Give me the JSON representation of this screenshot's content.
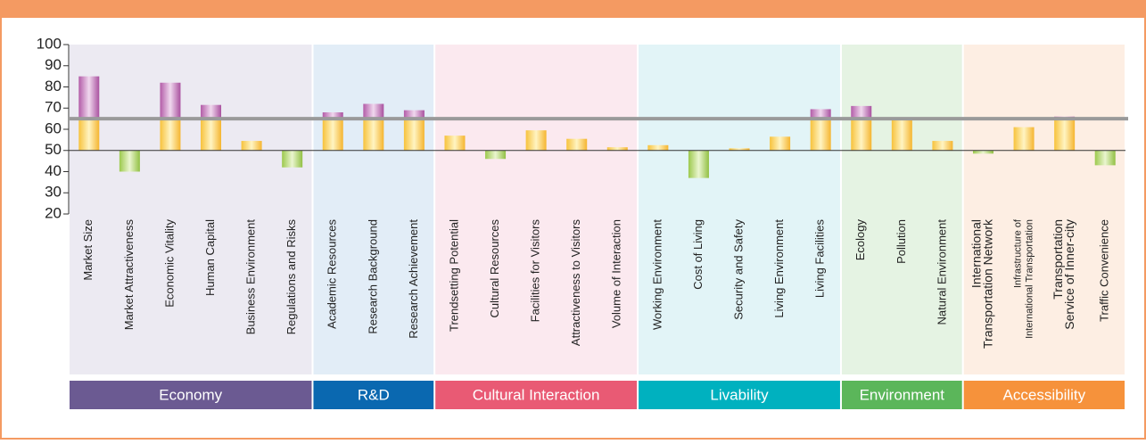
{
  "chart_data": {
    "type": "bar",
    "ylim": [
      20,
      100
    ],
    "yticks": [
      20,
      30,
      40,
      50,
      60,
      70,
      80,
      90,
      100
    ],
    "baseline": 50,
    "reference_line": 65,
    "groups": [
      {
        "name": "Economy",
        "color": "#6b5a92",
        "background": "#eceaf2",
        "categories": [
          [
            "Market Size"
          ],
          [
            "Market Attractiveness"
          ],
          [
            "Economic Vitality"
          ],
          [
            "Human Capital"
          ],
          [
            "Business Environment"
          ],
          [
            "Regulations and Risks"
          ]
        ],
        "values": [
          85,
          40,
          82,
          71.5,
          54.5,
          42
        ]
      },
      {
        "name": "R&D",
        "color": "#0a68b0",
        "background": "#e2edf7",
        "categories": [
          [
            "Academic Resources"
          ],
          [
            "Research Background"
          ],
          [
            "Research Achievement"
          ]
        ],
        "values": [
          68,
          72,
          69
        ]
      },
      {
        "name": "Cultural Interaction",
        "color": "#e95a74",
        "background": "#fbe9ef",
        "categories": [
          [
            "Trendsetting Potential"
          ],
          [
            "Cultural Resources"
          ],
          [
            "Facilities for Visitors"
          ],
          [
            "Attractiveness to Visitors"
          ],
          [
            "Volume of Interaction"
          ]
        ],
        "values": [
          57,
          46,
          59.5,
          55.5,
          51.5
        ]
      },
      {
        "name": "Livability",
        "color": "#00b1bf",
        "background": "#e2f4f7",
        "categories": [
          [
            "Working Environment"
          ],
          [
            "Cost of Living"
          ],
          [
            "Security and Safety"
          ],
          [
            "Living Environment"
          ],
          [
            "Living Facilities"
          ]
        ],
        "values": [
          52.5,
          37,
          51,
          56.5,
          69.5
        ]
      },
      {
        "name": "Environment",
        "color": "#5bb65a",
        "background": "#e5f3e3",
        "categories": [
          [
            "Ecology"
          ],
          [
            "Pollution"
          ],
          [
            "Natural Environment"
          ]
        ],
        "values": [
          71,
          64.5,
          54.5
        ]
      },
      {
        "name": "Accessibility",
        "color": "#f6923b",
        "background": "#fdeee3",
        "categories": [
          [
            "International",
            "Transportation Network"
          ],
          [
            "Infrastructure of",
            "International Transportation"
          ],
          [
            "Transportation",
            "Service of Inner-city"
          ],
          [
            "Traffic Convenience"
          ]
        ],
        "values": [
          48.5,
          61,
          66,
          43
        ]
      }
    ]
  }
}
